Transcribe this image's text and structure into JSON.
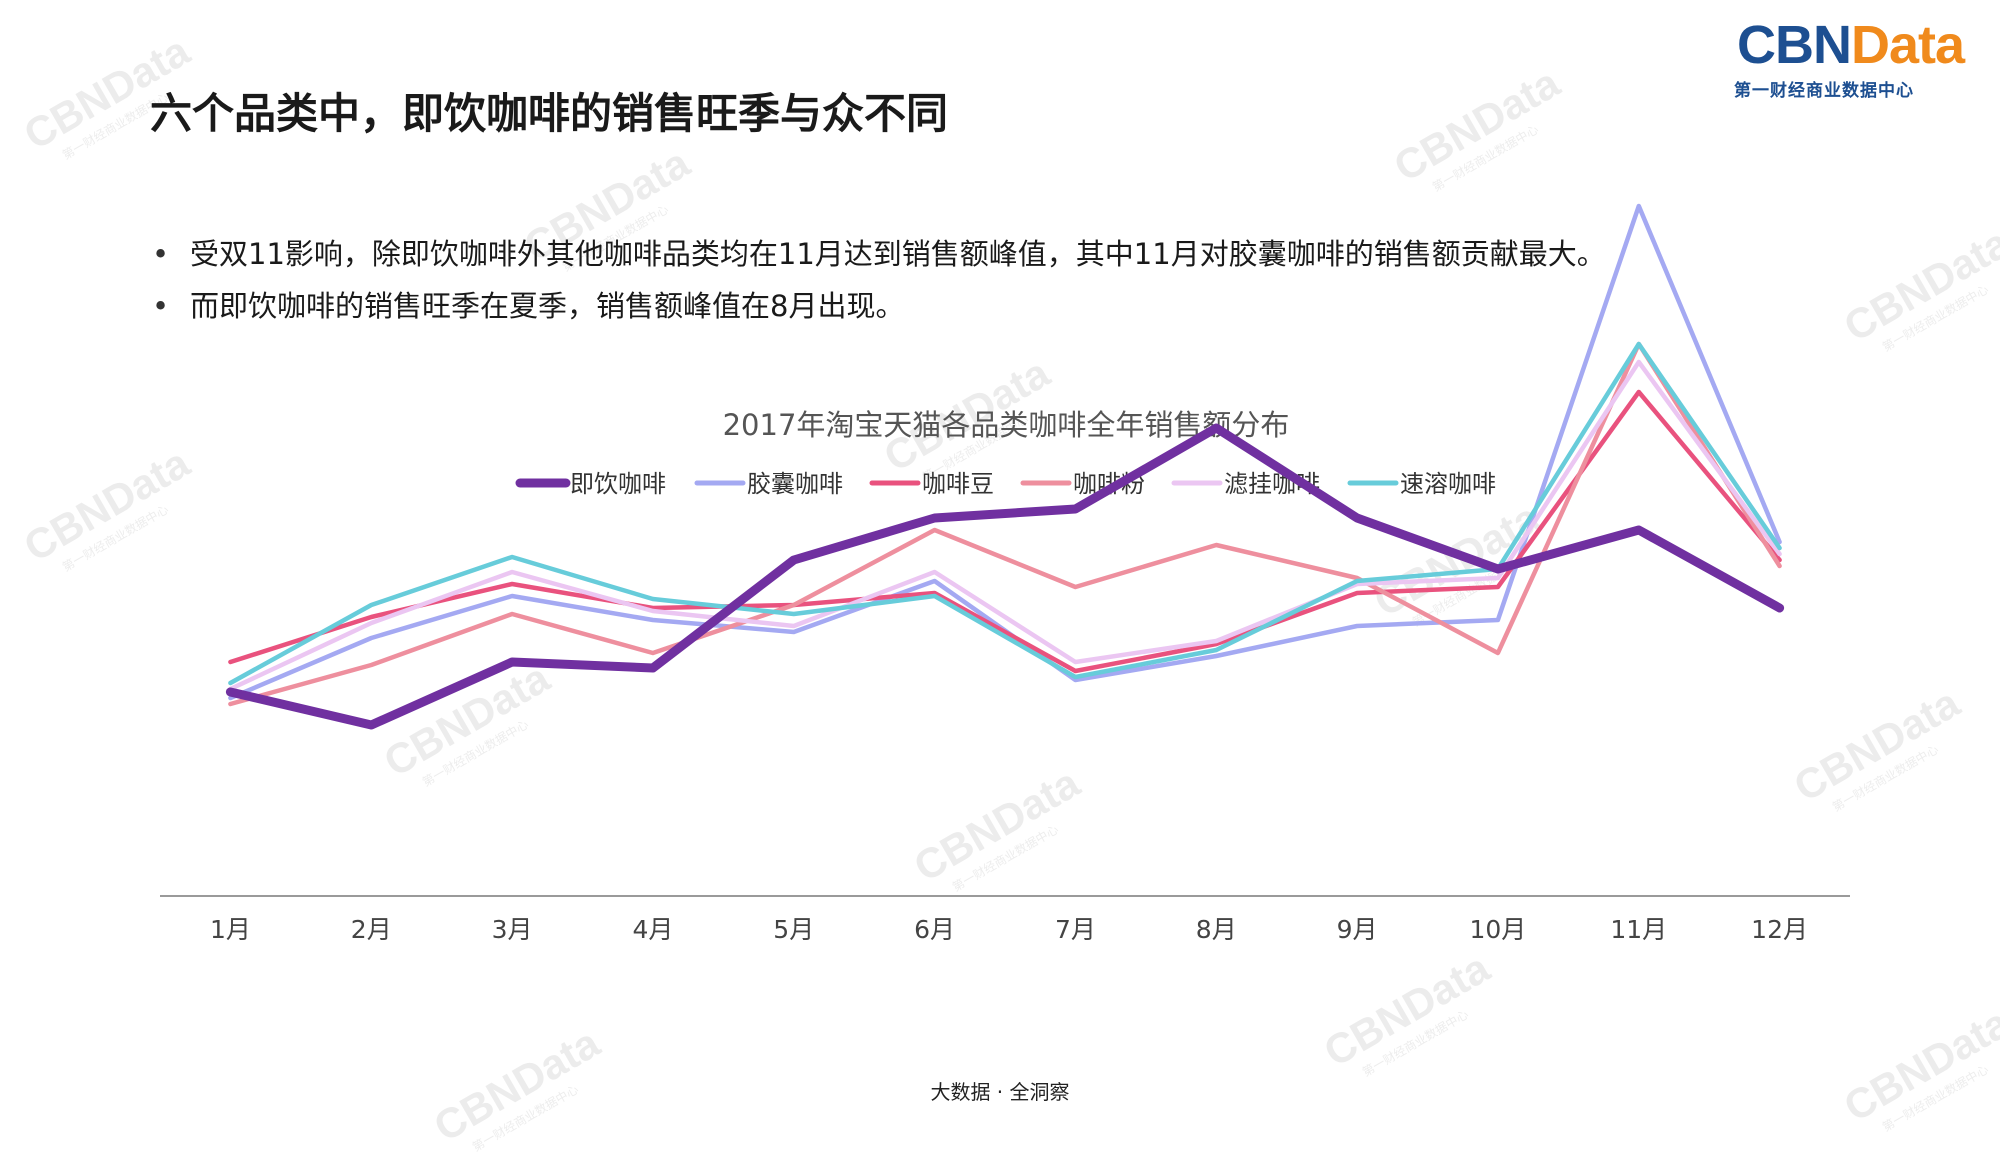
{
  "page": {
    "title": "六个品类中，即饮咖啡的销售旺季与众不同",
    "bullets": [
      "受双11影响，除即饮咖啡外其他咖啡品类均在11月达到销售额峰值，其中11月对胶囊咖啡的销售额贡献最大。",
      "而即饮咖啡的销售旺季在夏季，销售额峰值在8月出现。"
    ],
    "footer": "大数据 · 全洞察"
  },
  "logo": {
    "cbn": "CBN",
    "data": "Data",
    "subtitle": "第一财经商业数据中心"
  },
  "watermark": {
    "text": "CBNData",
    "sub": "第一财经商业数据中心"
  },
  "chart_data": {
    "type": "line",
    "title": "2017年淘宝天猫各品类咖啡全年销售额分布",
    "xlabel": "",
    "ylabel": "",
    "ylim": [
      0,
      100
    ],
    "y_axis_labels_shown": false,
    "grid": false,
    "legend_position": "top",
    "categories": [
      "1月",
      "2月",
      "3月",
      "4月",
      "5月",
      "6月",
      "7月",
      "8月",
      "9月",
      "10月",
      "11月",
      "12月"
    ],
    "series": [
      {
        "name": "即饮咖啡",
        "color": "#7030a0",
        "emphasis": true,
        "values": [
          34,
          28.5,
          39,
          38,
          56,
          63,
          64.5,
          78,
          63,
          54.5,
          61,
          48
        ]
      },
      {
        "name": "胶囊咖啡",
        "color": "#a4a9f2",
        "values": [
          33,
          43,
          50,
          46,
          44,
          52.5,
          36,
          40,
          45,
          46,
          115,
          59
        ]
      },
      {
        "name": "咖啡豆",
        "color": "#e9527e",
        "values": [
          39,
          46.5,
          52,
          48,
          48.5,
          50.5,
          37.5,
          42,
          50.5,
          51.5,
          84,
          56
        ]
      },
      {
        "name": "咖啡粉",
        "color": "#ee8f9e",
        "values": [
          32,
          38.5,
          47,
          40.5,
          48.5,
          61,
          51.5,
          58.5,
          53,
          40.5,
          92,
          55
        ]
      },
      {
        "name": "滤挂咖啡",
        "color": "#ebc6f2",
        "values": [
          34.5,
          45.5,
          54,
          47.5,
          45,
          54,
          39,
          42.5,
          52,
          53,
          89,
          57
        ]
      },
      {
        "name": "速溶咖啡",
        "color": "#67ccda",
        "values": [
          35.5,
          48.5,
          56.5,
          49.5,
          47,
          50,
          36.5,
          41,
          52.5,
          54.5,
          92,
          58
        ]
      }
    ]
  }
}
